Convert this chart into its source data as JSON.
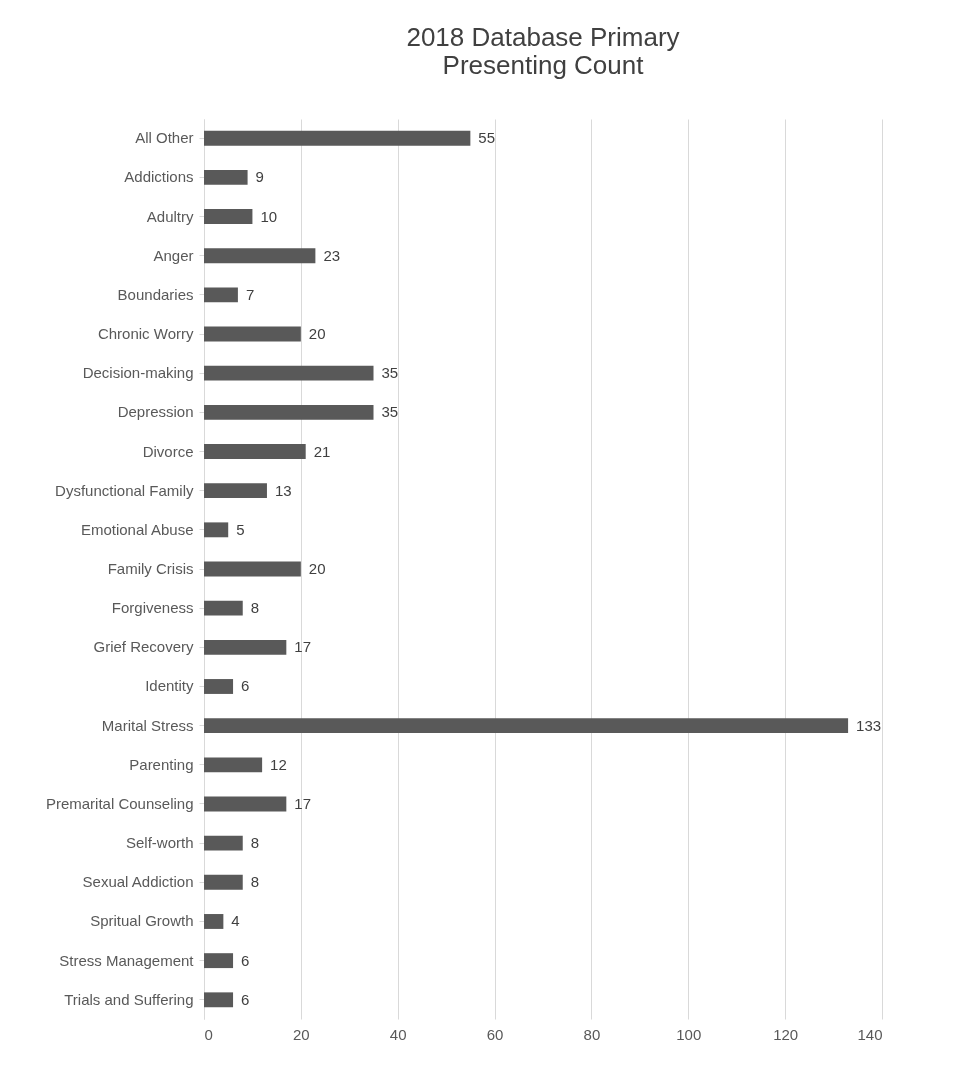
{
  "chart_data": {
    "type": "bar",
    "orientation": "horizontal",
    "title": [
      "2018 Database Primary",
      "Presenting Count"
    ],
    "categories": [
      "All Other",
      "Addictions",
      "Adultry",
      "Anger",
      "Boundaries",
      "Chronic Worry",
      "Decision-making",
      "Depression",
      "Divorce",
      "Dysfunctional Family",
      "Emotional Abuse",
      "Family Crisis",
      "Forgiveness",
      "Grief Recovery",
      "Identity",
      "Marital Stress",
      "Parenting",
      "Premarital Counseling",
      "Self-worth",
      "Sexual Addiction",
      "Spritual Growth",
      "Stress Management",
      "Trials and Suffering"
    ],
    "values": [
      55,
      9,
      10,
      23,
      7,
      20,
      35,
      35,
      21,
      13,
      5,
      20,
      8,
      17,
      6,
      133,
      12,
      17,
      8,
      8,
      4,
      6,
      6
    ],
    "color": "#595959",
    "xlim": [
      0,
      140
    ],
    "xticks": [
      0,
      20,
      40,
      60,
      80,
      100,
      120,
      140
    ],
    "grid": "x",
    "data_labels": true
  }
}
